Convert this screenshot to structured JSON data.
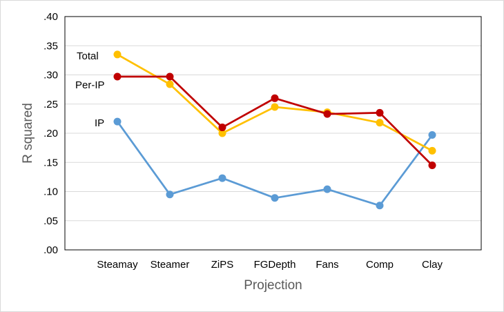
{
  "chart_data": {
    "type": "line",
    "categories": [
      "Steamay",
      "Steamer",
      "ZiPS",
      "FGDepth",
      "Fans",
      "Comp",
      "Clay"
    ],
    "series": [
      {
        "name": "Total",
        "color": "#ffc000",
        "values": [
          0.335,
          0.284,
          0.2,
          0.245,
          0.236,
          0.218,
          0.17
        ]
      },
      {
        "name": "Per-IP",
        "color": "#c00000",
        "values": [
          0.297,
          0.297,
          0.21,
          0.26,
          0.233,
          0.235,
          0.145
        ]
      },
      {
        "name": "IP",
        "color": "#5b9bd5",
        "values": [
          0.22,
          0.095,
          0.123,
          0.089,
          0.104,
          0.076,
          0.197
        ]
      }
    ],
    "xlabel": "Projection",
    "ylabel": "R squared",
    "ylim": [
      0,
      0.4
    ],
    "ytick_labels": [
      ".00",
      ".05",
      ".10",
      ".15",
      ".20",
      ".25",
      ".30",
      ".35",
      ".40"
    ],
    "ytick_values": [
      0,
      0.05,
      0.1,
      0.15,
      0.2,
      0.25,
      0.3,
      0.35,
      0.4
    ],
    "grid": true,
    "legend": "inline-left"
  }
}
